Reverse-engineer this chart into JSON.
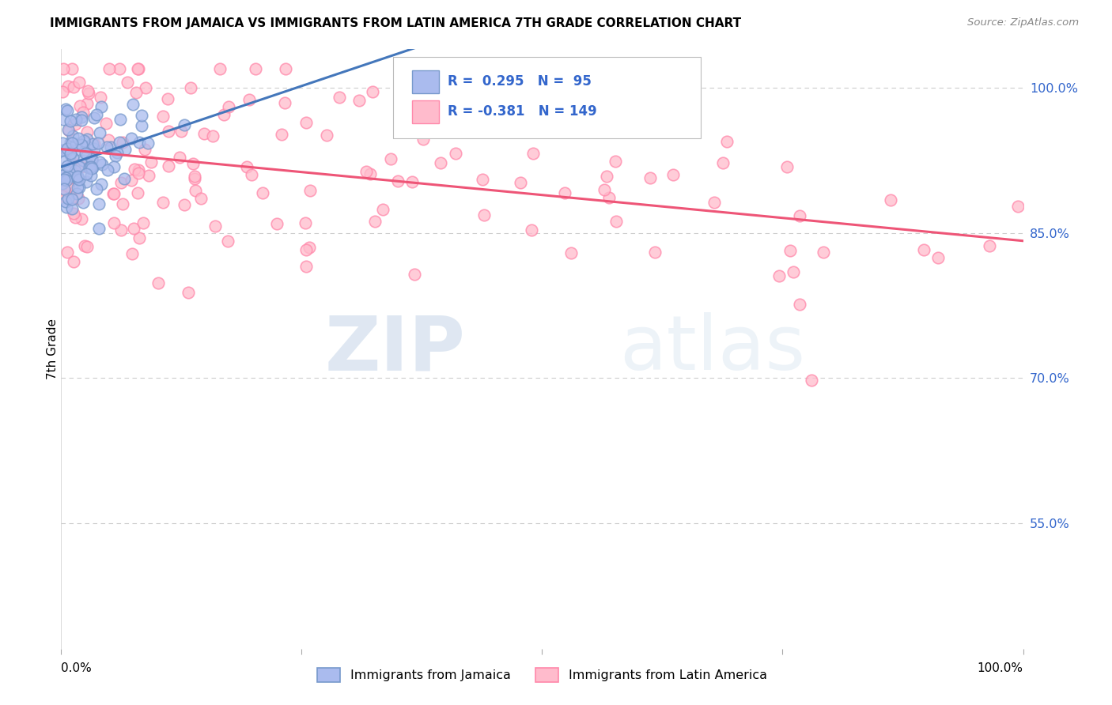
{
  "title": "IMMIGRANTS FROM JAMAICA VS IMMIGRANTS FROM LATIN AMERICA 7TH GRADE CORRELATION CHART",
  "source": "Source: ZipAtlas.com",
  "ylabel": "7th Grade",
  "ytick_labels": [
    "100.0%",
    "85.0%",
    "70.0%",
    "55.0%"
  ],
  "ytick_values": [
    1.0,
    0.85,
    0.7,
    0.55
  ],
  "xlim": [
    0.0,
    1.0
  ],
  "ylim": [
    0.42,
    1.04
  ],
  "jamaica_R": 0.295,
  "jamaica_N": 95,
  "latin_R": -0.381,
  "latin_N": 149,
  "jamaica_color": "#aabbee",
  "latin_color": "#ffbbcc",
  "jamaica_edge_color": "#7799cc",
  "latin_edge_color": "#ff88aa",
  "jamaica_line_color": "#4477bb",
  "latin_line_color": "#ee5577",
  "watermark_zip": "ZIP",
  "watermark_atlas": "atlas",
  "background_color": "#ffffff",
  "grid_color": "#cccccc",
  "legend_r1": "R =  0.295   N =  95",
  "legend_r2": "R = -0.381   N = 149",
  "legend_color": "#3366cc",
  "bottom_legend_jamaica": "Immigrants from Jamaica",
  "bottom_legend_latin": "Immigrants from Latin America"
}
